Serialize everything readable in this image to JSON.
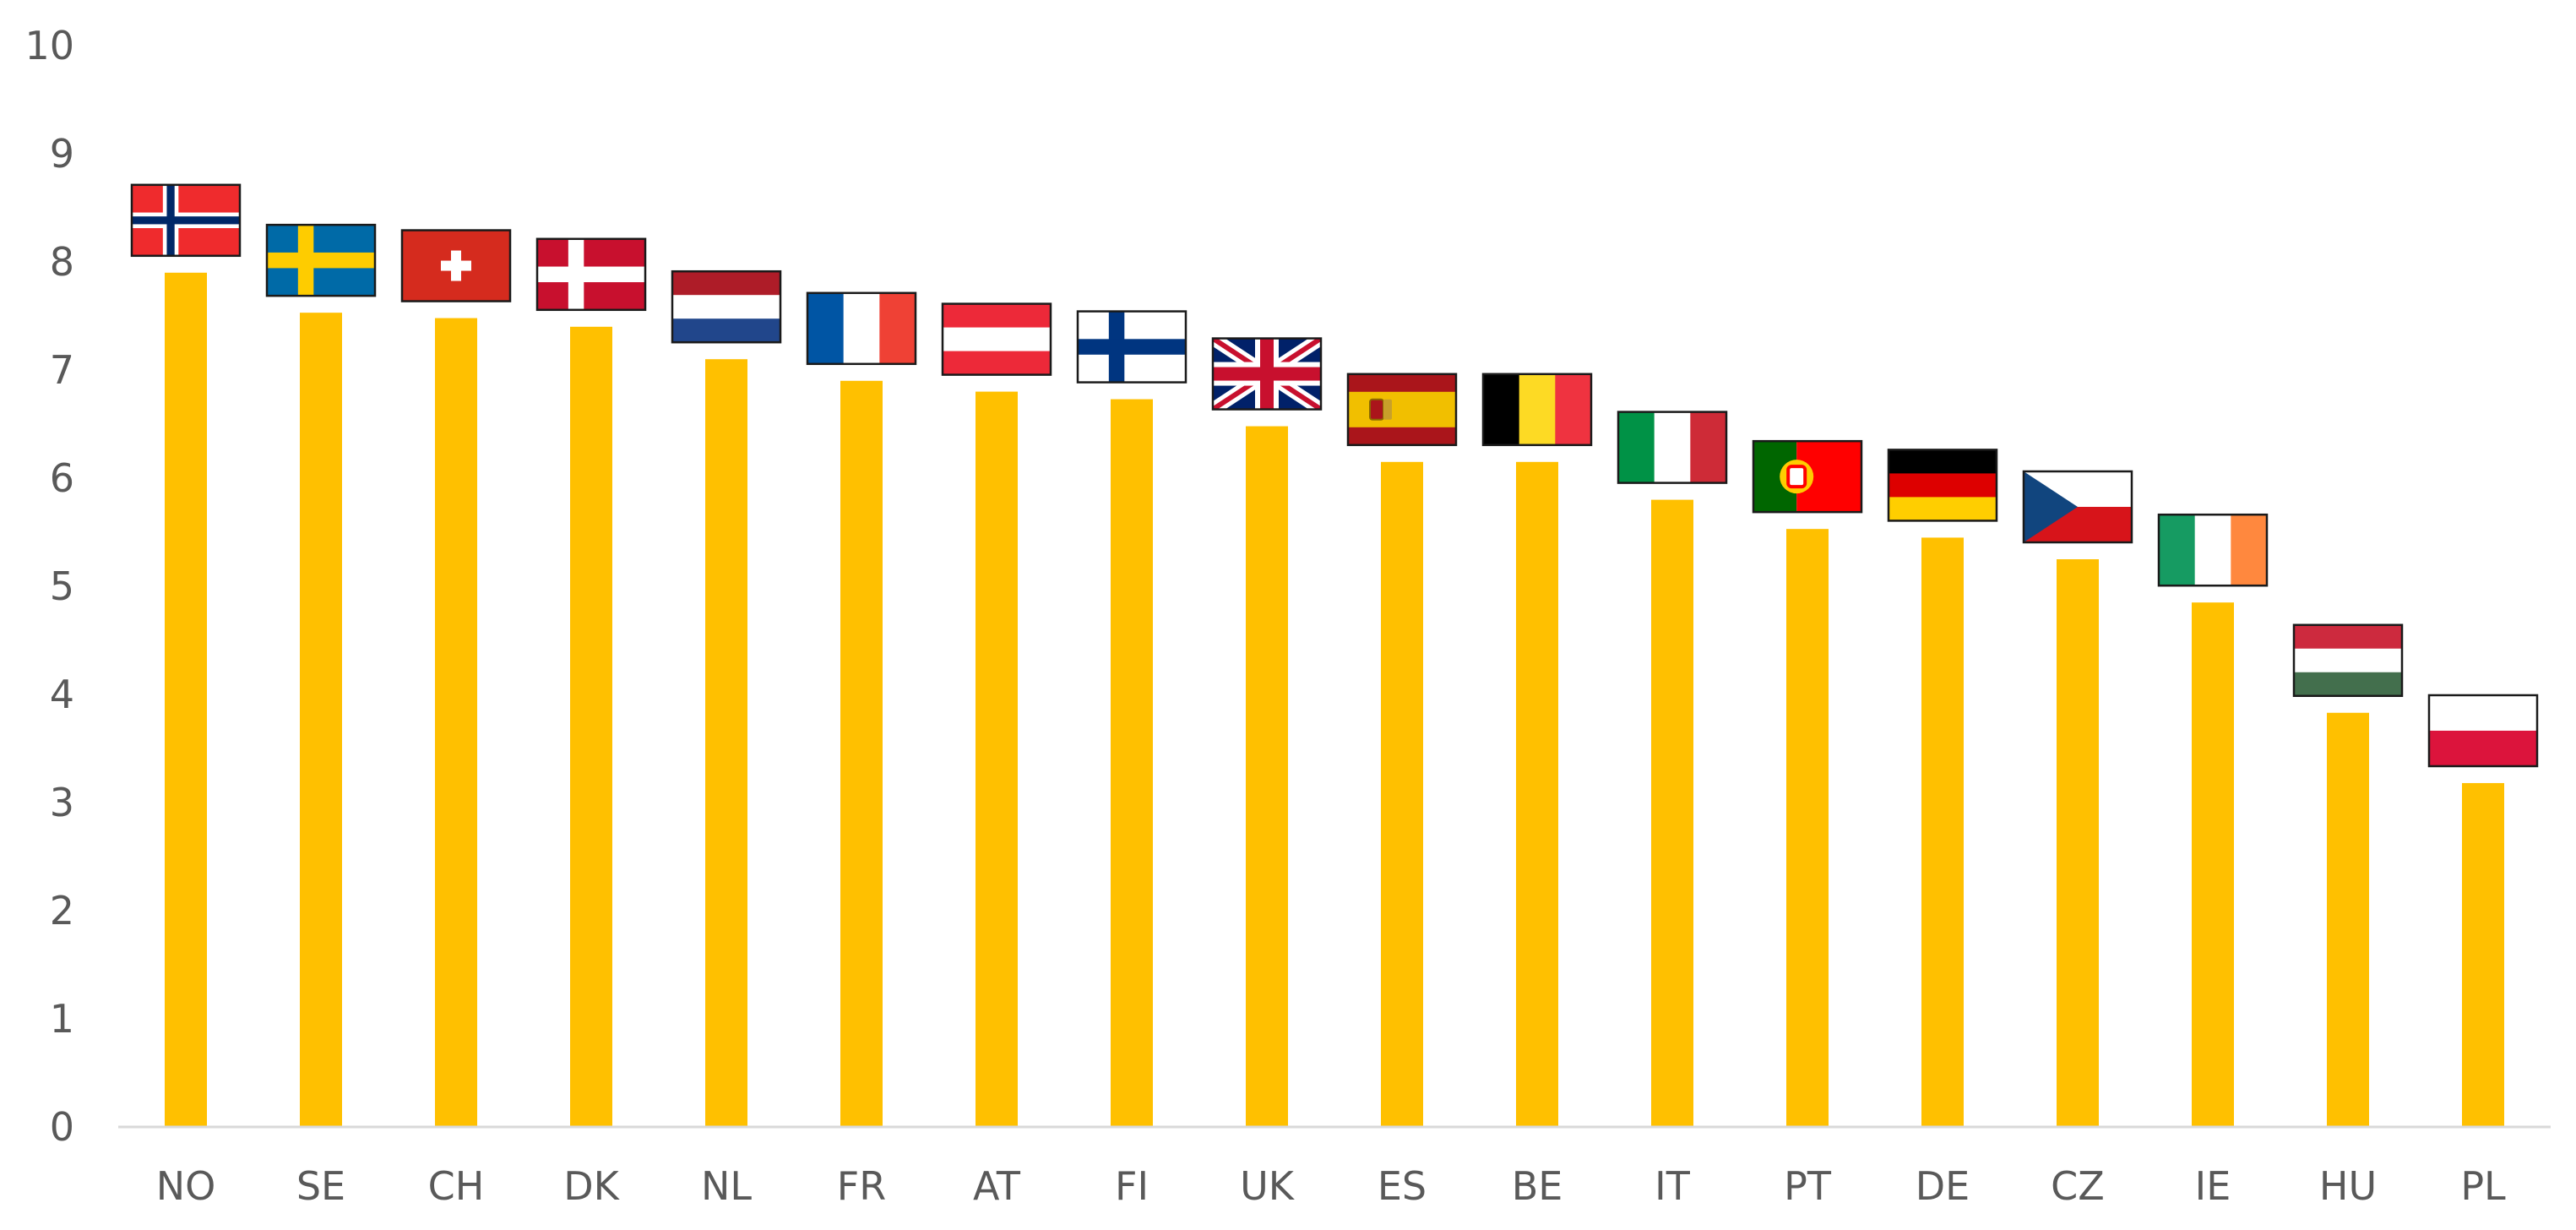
{
  "chart_data": {
    "type": "bar",
    "title": "",
    "xlabel": "",
    "ylabel": "",
    "ylim": [
      0,
      10
    ],
    "yticks": [
      0,
      1,
      2,
      3,
      4,
      5,
      6,
      7,
      8,
      9,
      10
    ],
    "yticks_text": [
      "0",
      "1",
      "2",
      "3",
      "4",
      "5",
      "6",
      "7",
      "8",
      "9",
      "10"
    ],
    "grid": false,
    "legend": "none",
    "bar_color": "#FFC000",
    "axis_color": "#D9D9D9",
    "categories": [
      "NO",
      "SE",
      "CH",
      "DK",
      "NL",
      "FR",
      "AT",
      "FI",
      "UK",
      "ES",
      "BE",
      "IT",
      "PT",
      "DE",
      "CZ",
      "IE",
      "HU",
      "PL"
    ],
    "values": [
      7.9,
      7.53,
      7.48,
      7.4,
      7.1,
      6.9,
      6.8,
      6.73,
      6.48,
      6.15,
      6.15,
      5.8,
      5.53,
      5.45,
      5.25,
      4.85,
      3.83,
      3.18
    ],
    "flags": [
      "norway-flag",
      "sweden-flag",
      "switzerland-flag",
      "denmark-flag",
      "netherlands-flag",
      "france-flag",
      "austria-flag",
      "finland-flag",
      "uk-flag",
      "spain-flag",
      "belgium-flag",
      "italy-flag",
      "portugal-flag",
      "germany-flag",
      "czech-flag",
      "ireland-flag",
      "hungary-flag",
      "poland-flag"
    ]
  }
}
